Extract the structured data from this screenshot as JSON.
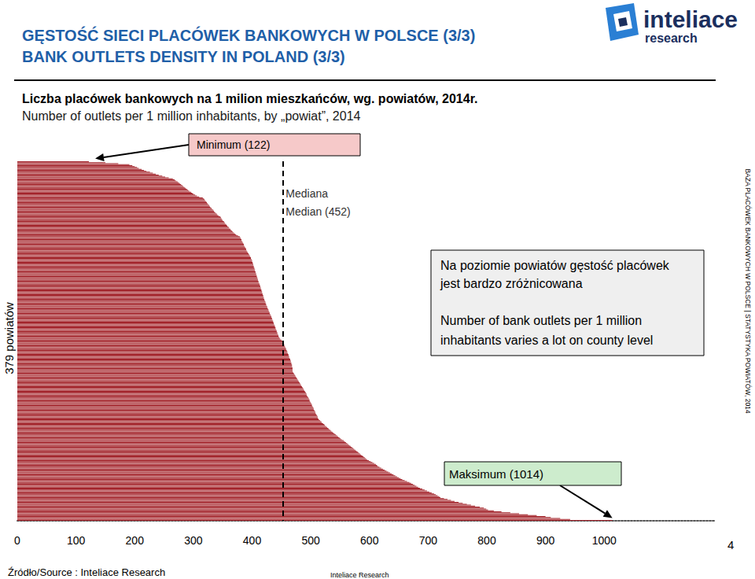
{
  "chart_data": {
    "type": "bar",
    "orientation": "horizontal",
    "title": "GĘSTOŚĆ SIECI PLACÓWEK BANKOWYCH W POLSCE (3/3)",
    "title_en": "BANK OUTLETS DENSITY IN POLAND (3/3)",
    "subtitle": "Liczba placówek bankowych na 1 milion mieszkańców, wg. powiatów, 2014r.",
    "subtitle_en": "Number of outlets per 1 million inhabitants, by „powiat”, 2014",
    "y_label": "379 powiatów",
    "side_note": "BAZA PLACÓWEK BANKOWYCH W POLSCE | STATYSTYKA POWIATÓW, 2014",
    "source": "Źródło/Source : Inteliace Research",
    "footer": "Inteliace Research",
    "page": "4",
    "logo": [
      "inteliace",
      "research"
    ],
    "annotations": {
      "minimum": {
        "text": "Minimum (122)"
      },
      "median": {
        "text": [
          "Mediana",
          "Median (452)"
        ],
        "value": 452
      },
      "maximum": {
        "text": "Maksimum (1014)"
      },
      "note": [
        "Na poziomie powiatów gęstość placówek",
        "jest bardzo zróżnicowana",
        "Number of bank outlets per 1 million",
        "inhabitants varies a lot on county level"
      ]
    },
    "color": "#a3242b",
    "xlim": [
      0,
      1190
    ],
    "xticks": [
      0,
      100,
      200,
      300,
      400,
      500,
      600,
      700,
      800,
      900,
      1000
    ],
    "tick_labels": "x",
    "grid": false,
    "values": [
      122,
      150,
      172,
      191,
      196,
      200,
      204,
      207,
      212,
      216,
      220,
      226,
      231,
      236,
      241,
      247,
      252,
      258,
      265,
      268,
      270,
      273,
      275,
      277,
      279,
      281,
      283,
      285,
      287,
      289,
      291,
      293,
      296,
      298,
      300,
      303,
      306,
      310,
      316,
      318,
      319,
      320,
      322,
      323,
      324,
      325,
      327,
      328,
      329,
      331,
      332,
      334,
      335,
      336,
      338,
      340,
      341,
      343,
      346,
      347,
      348,
      349,
      350,
      352,
      353,
      354,
      356,
      357,
      358,
      360,
      361,
      363,
      364,
      366,
      367,
      369,
      371,
      373,
      376,
      379,
      380,
      381,
      382,
      382,
      383,
      384,
      385,
      386,
      386,
      387,
      388,
      389,
      390,
      390,
      391,
      392,
      393,
      394,
      395,
      396,
      397,
      398,
      398,
      399,
      400,
      400,
      401,
      401,
      402,
      402,
      403,
      403,
      404,
      404,
      405,
      405,
      406,
      406,
      407,
      407,
      408,
      408,
      409,
      409,
      410,
      410,
      411,
      411,
      412,
      413,
      413,
      414,
      414,
      415,
      415,
      416,
      416,
      417,
      417,
      418,
      418,
      419,
      419,
      420,
      420,
      421,
      421,
      422,
      423,
      423,
      424,
      424,
      425,
      426,
      426,
      427,
      428,
      428,
      429,
      430,
      430,
      431,
      432,
      433,
      433,
      434,
      434,
      435,
      436,
      436,
      437,
      437,
      438,
      439,
      439,
      440,
      440,
      441,
      442,
      442,
      443,
      443,
      444,
      445,
      445,
      446,
      447,
      448,
      450,
      452,
      452,
      453,
      454,
      455,
      455,
      456,
      457,
      458,
      458,
      459,
      460,
      460,
      461,
      462,
      462,
      463,
      463,
      464,
      465,
      465,
      466,
      466,
      467,
      467,
      468,
      468,
      468,
      469,
      469,
      469,
      469,
      469,
      470,
      471,
      472,
      473,
      474,
      475,
      476,
      477,
      478,
      479,
      480,
      481,
      482,
      483,
      484,
      485,
      486,
      487,
      488,
      489,
      490,
      491,
      492,
      493,
      493,
      494,
      495,
      496,
      497,
      498,
      498,
      499,
      500,
      501,
      502,
      502,
      503,
      504,
      505,
      505,
      506,
      507,
      508,
      508,
      509,
      510,
      511,
      512,
      512,
      513,
      514,
      516,
      518,
      519,
      521,
      523,
      524,
      526,
      528,
      530,
      531,
      533,
      535,
      537,
      539,
      541,
      543,
      545,
      547,
      549,
      551,
      553,
      556,
      558,
      560,
      562,
      564,
      566,
      568,
      570,
      572,
      574,
      576,
      578,
      580,
      582,
      584,
      586,
      588,
      590,
      592,
      594,
      596,
      599,
      602,
      605,
      608,
      611,
      613,
      614,
      617,
      620,
      623,
      626,
      629,
      632,
      635,
      638,
      641,
      644,
      647,
      650,
      653,
      656,
      660,
      664,
      668,
      671,
      674,
      677,
      680,
      683,
      686,
      690,
      694,
      698,
      702,
      706,
      710,
      713,
      716,
      719,
      721,
      727,
      733,
      739,
      745,
      752,
      759,
      766,
      773,
      780,
      788,
      795,
      799,
      802,
      812,
      825,
      840,
      855,
      870,
      885,
      900,
      909,
      925,
      942,
      1014
    ]
  }
}
